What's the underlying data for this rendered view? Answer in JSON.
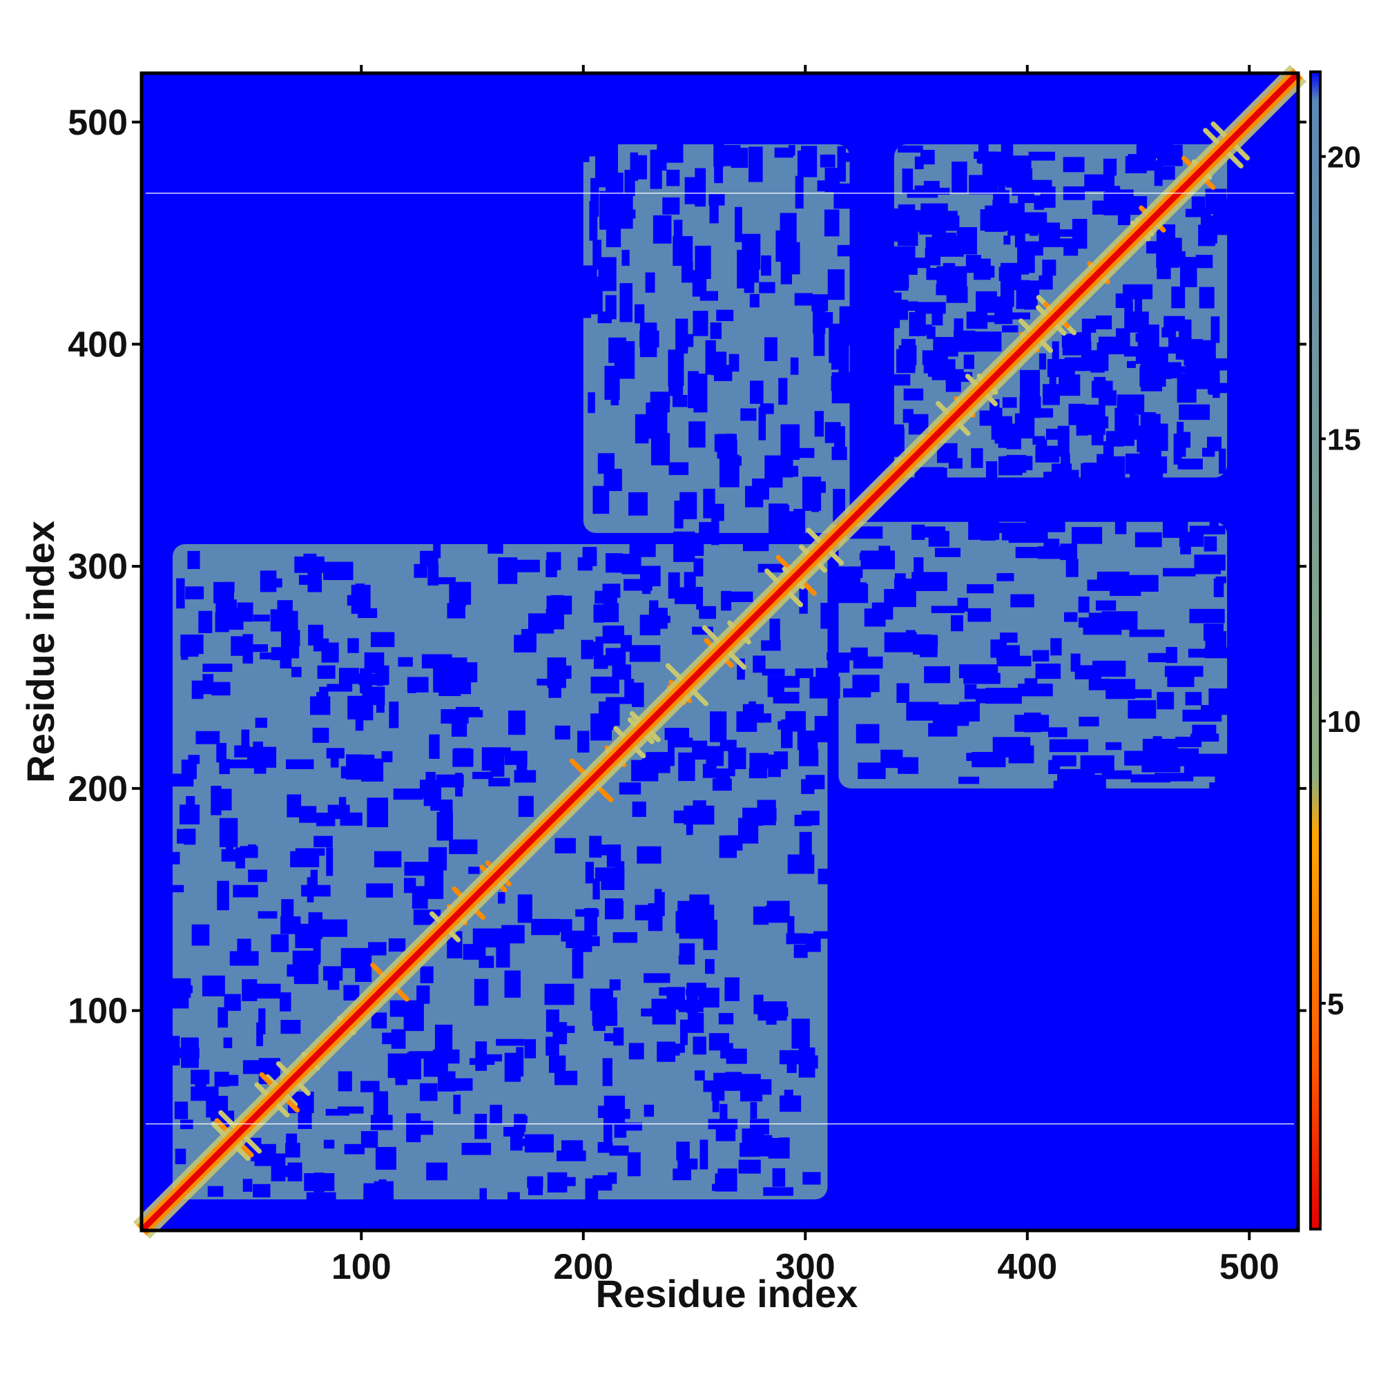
{
  "chart_data": {
    "type": "heatmap",
    "title": "",
    "xlabel": "Residue index",
    "ylabel": "Residue index",
    "xlim": [
      1,
      522
    ],
    "ylim": [
      1,
      522
    ],
    "x_ticks": [
      100,
      200,
      300,
      400,
      500
    ],
    "y_ticks": [
      100,
      200,
      300,
      400,
      500
    ],
    "x_tick_labels": [
      "100",
      "200",
      "300",
      "400",
      "500"
    ],
    "y_tick_labels": [
      "100",
      "200",
      "300",
      "400",
      "500"
    ],
    "grid": false,
    "colorbar": {
      "range": [
        1,
        21.5
      ],
      "ticks": [
        5,
        10,
        15,
        20
      ],
      "tick_labels": [
        "5",
        "10",
        "15",
        "20"
      ],
      "colors": [
        "#e60000",
        "#ff5a00",
        "#ffa500",
        "#8fae80",
        "#5b87b5",
        "#0000ff"
      ],
      "stops": [
        1,
        4,
        8,
        9,
        21,
        21.5
      ]
    },
    "colors": {
      "far": "#0000ff",
      "mid": "#5b87b5",
      "contact": "#c8c870",
      "close": "#ff8c00",
      "diagonal": "#e60000"
    },
    "domains": [
      {
        "start": 15,
        "end": 310
      },
      {
        "start": 340,
        "end": 490
      }
    ],
    "inter_domain_block": {
      "x": [
        315,
        490
      ],
      "y": [
        200,
        320
      ]
    },
    "reference_lines_y": [
      49,
      468
    ]
  }
}
